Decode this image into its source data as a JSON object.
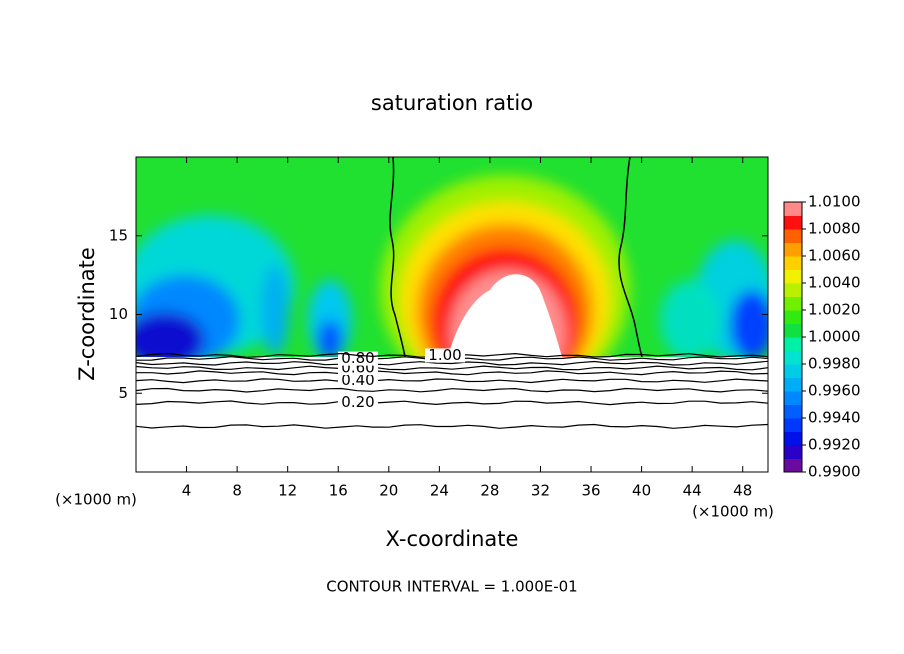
{
  "chart_data": {
    "type": "contour",
    "title": "saturation ratio",
    "x_label": "X-coordinate",
    "y_label": "Z-coordinate",
    "x_unit": "(×1000 m)",
    "x_unit_right": "(×1000 m)",
    "footer": "CONTOUR INTERVAL = 1.000E-01",
    "xlim": [
      0,
      50
    ],
    "ylim": [
      0,
      20
    ],
    "xticks": [
      4,
      8,
      12,
      16,
      20,
      24,
      28,
      32,
      36,
      40,
      44,
      48
    ],
    "yticks": [
      5,
      10,
      15
    ],
    "contours": [
      {
        "level": 0.1,
        "z": 2.9
      },
      {
        "level": 0.2,
        "level_label": "0.20",
        "z": 4.4
      },
      {
        "level": 0.3,
        "z": 5.2
      },
      {
        "level": 0.4,
        "level_label": "0.40",
        "z": 5.8
      },
      {
        "level": 0.5,
        "z": 6.3
      },
      {
        "level": 0.6,
        "level_label": "0.60",
        "z": 6.6
      },
      {
        "level": 0.7,
        "z": 6.9
      },
      {
        "level": 0.8,
        "level_label": "0.80",
        "z": 7.2
      },
      {
        "level": 1.0,
        "level_label": "1.00",
        "z": 7.4
      }
    ],
    "colorbar": {
      "lim": [
        0.99,
        1.01
      ],
      "ticks": [
        {
          "value": 0.99,
          "label": "0.9900"
        },
        {
          "value": 0.992,
          "label": "0.9920"
        },
        {
          "value": 0.994,
          "label": "0.9940"
        },
        {
          "value": 0.996,
          "label": "0.9960"
        },
        {
          "value": 0.998,
          "label": "0.9980"
        },
        {
          "value": 1.0,
          "label": "1.0000"
        },
        {
          "value": 1.002,
          "label": "1.0020"
        },
        {
          "value": 1.004,
          "label": "1.0040"
        },
        {
          "value": 1.006,
          "label": "1.0060"
        },
        {
          "value": 1.008,
          "label": "1.0080"
        },
        {
          "value": 1.01,
          "label": "1.0100"
        }
      ],
      "colors": [
        "#6a0aa0",
        "#2a00c8",
        "#0010e8",
        "#0038ff",
        "#0060ff",
        "#0088ff",
        "#00aef8",
        "#00cce8",
        "#00e4d0",
        "#00f0a8",
        "#10e040",
        "#30ea10",
        "#70f000",
        "#b8f000",
        "#f0f000",
        "#ffd000",
        "#ffa000",
        "#ff6000",
        "#ff1010",
        "#ff8888"
      ]
    }
  }
}
